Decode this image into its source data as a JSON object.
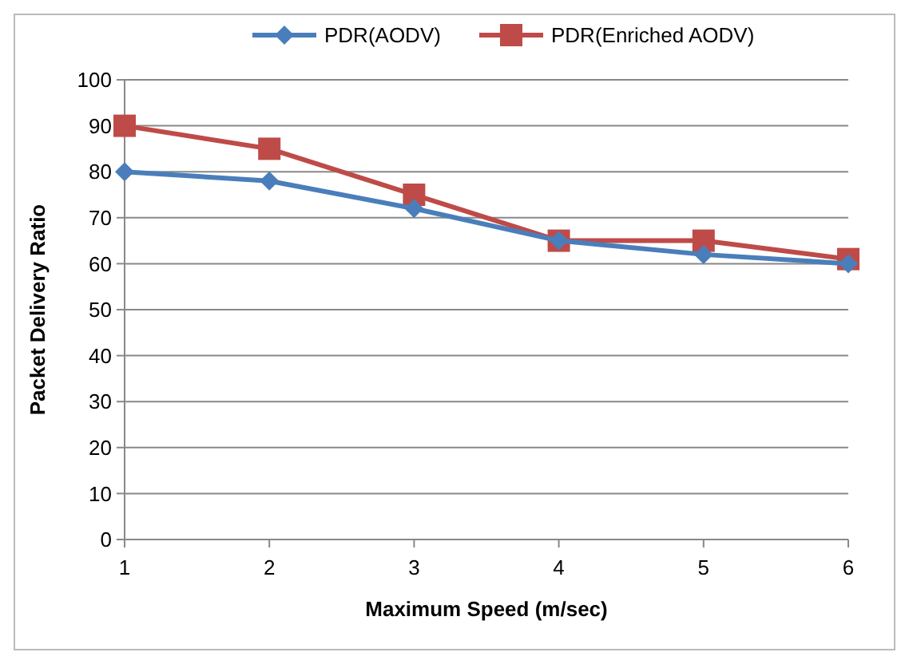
{
  "chart_data": {
    "type": "line",
    "xlabel": "Maximum Speed (m/sec)",
    "ylabel": "Packet Delivery Ratio",
    "x": [
      1,
      2,
      3,
      4,
      5,
      6
    ],
    "xlim": [
      1,
      6
    ],
    "xticks": [
      1,
      2,
      3,
      4,
      5,
      6
    ],
    "ylim": [
      0,
      100
    ],
    "yticks": [
      0,
      10,
      20,
      30,
      40,
      50,
      60,
      70,
      80,
      90,
      100
    ],
    "grid": "y",
    "legend": "top",
    "series": [
      {
        "name": "PDR(AODV)",
        "color": "#4a7ebb",
        "marker": "diamond",
        "values": [
          80,
          78,
          72,
          65,
          62,
          60
        ]
      },
      {
        "name": "PDR(Enriched AODV)",
        "color": "#be4b48",
        "marker": "square",
        "values": [
          90,
          85,
          75,
          65,
          65,
          61
        ]
      }
    ]
  }
}
